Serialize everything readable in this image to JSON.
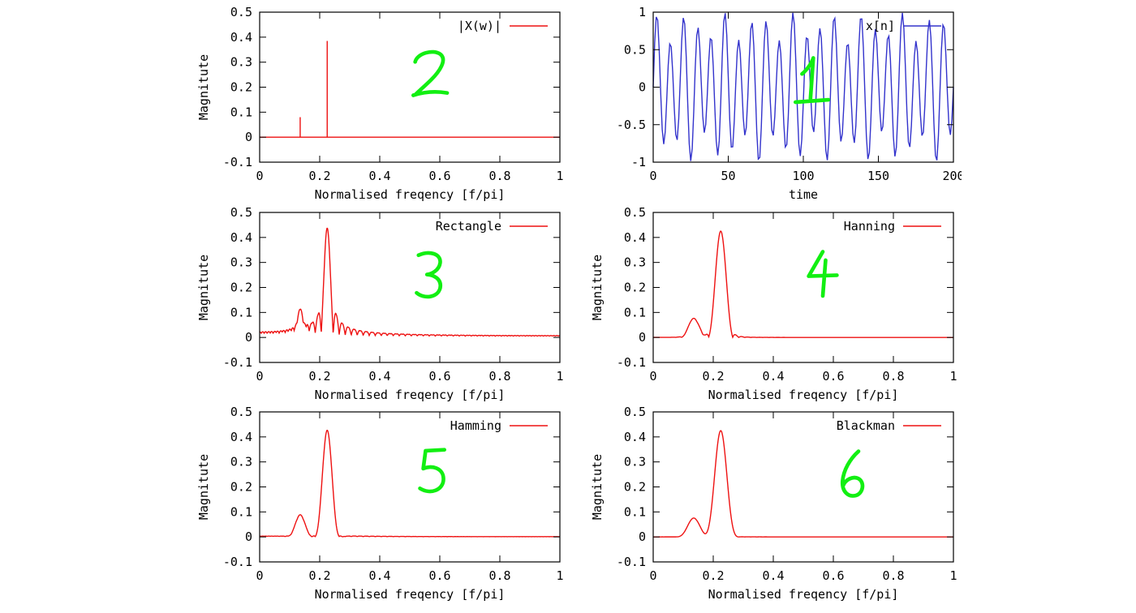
{
  "figure": {
    "background": "#ffffff",
    "text_color": "#000000",
    "axis_color": "#000000",
    "annotation_color": "#12ef12"
  },
  "chart_data": [
    {
      "id": "dft-spectrum",
      "type": "line",
      "legend": "|X(w)|",
      "line_color": "#ee1111",
      "xlabel": "Normalised freqency [f/pi]",
      "ylabel": "Magnitute",
      "xlim": [
        0,
        1
      ],
      "ylim": [
        -0.1,
        0.5
      ],
      "xtick_values": [
        0,
        0.2,
        0.4,
        0.6,
        0.8,
        1
      ],
      "xtick_labels": [
        "0",
        "0.2",
        "0.4",
        "0.6",
        "0.8",
        "1"
      ],
      "ytick_values": [
        -0.1,
        0,
        0.1,
        0.2,
        0.3,
        0.4,
        0.5
      ],
      "ytick_labels": [
        "-0.1",
        "0",
        "0.1",
        "0.2",
        "0.3",
        "0.4",
        "0.5"
      ],
      "series": {
        "kind": "impulses",
        "baseline": 0,
        "impulses": [
          {
            "x": 0.135,
            "h": 0.08
          },
          {
            "x": 0.225,
            "h": 0.385
          }
        ]
      },
      "annotation": {
        "text": "2",
        "fx": 0.568,
        "fy": 0.416
      }
    },
    {
      "id": "time-signal",
      "type": "line",
      "legend": "x[n]",
      "line_color": "#3333cc",
      "xlabel": "time",
      "ylabel": "",
      "xlim": [
        0,
        200
      ],
      "ylim": [
        -1,
        1
      ],
      "xtick_values": [
        0,
        50,
        100,
        150,
        200
      ],
      "xtick_labels": [
        "0",
        "50",
        "100",
        "150",
        "200"
      ],
      "ytick_values": [
        -1,
        -0.5,
        0,
        0.5,
        1
      ],
      "ytick_labels": [
        "-1",
        "-0.5",
        "0",
        "0.5",
        "1"
      ],
      "series": {
        "kind": "two_tone",
        "amplitudes": [
          0.2,
          0.8
        ],
        "frequencies_cyc_per_sample": [
          0.0675,
          0.11
        ],
        "n_range": [
          0,
          200
        ],
        "n_step": 1
      },
      "annotation": {
        "text": "1",
        "fx": 0.527,
        "fy": 0.459
      }
    },
    {
      "id": "rectangle-window-spectrum",
      "type": "line",
      "legend": "Rectangle",
      "line_color": "#ee1111",
      "xlabel": "Normalised freqency [f/pi]",
      "ylabel": "Magnitute",
      "xlim": [
        0,
        1
      ],
      "ylim": [
        -0.1,
        0.5
      ],
      "xtick_values": [
        0,
        0.2,
        0.4,
        0.6,
        0.8,
        1
      ],
      "xtick_labels": [
        "0",
        "0.2",
        "0.4",
        "0.6",
        "0.8",
        "1"
      ],
      "ytick_values": [
        -0.1,
        0,
        0.1,
        0.2,
        0.3,
        0.4,
        0.5
      ],
      "ytick_labels": [
        "-0.1",
        "0",
        "0.1",
        "0.2",
        "0.3",
        "0.4",
        "0.5"
      ],
      "series": {
        "kind": "window_spectrum",
        "window": "Rectangle",
        "cosine_coeffs": [
          1
        ],
        "window_length": 100,
        "components": [
          {
            "x": 0.135,
            "h": 0.08
          },
          {
            "x": 0.225,
            "h": 0.425
          }
        ]
      },
      "annotation": {
        "text": "3",
        "fx": 0.573,
        "fy": 0.42
      }
    },
    {
      "id": "hanning-window-spectrum",
      "type": "line",
      "legend": "Hanning",
      "line_color": "#ee1111",
      "xlabel": "Normalised freqency [f/pi]",
      "ylabel": "Magnitute",
      "xlim": [
        0,
        1
      ],
      "ylim": [
        -0.1,
        0.5
      ],
      "xtick_values": [
        0,
        0.2,
        0.4,
        0.6,
        0.8,
        1
      ],
      "xtick_labels": [
        "0",
        "0.2",
        "0.4",
        "0.6",
        "0.8",
        "1"
      ],
      "ytick_values": [
        -0.1,
        0,
        0.1,
        0.2,
        0.3,
        0.4,
        0.5
      ],
      "ytick_labels": [
        "-0.1",
        "0",
        "0.1",
        "0.2",
        "0.3",
        "0.4",
        "0.5"
      ],
      "series": {
        "kind": "window_spectrum",
        "window": "Hanning",
        "cosine_coeffs": [
          0.5,
          0.5
        ],
        "window_length": 100,
        "components": [
          {
            "x": 0.135,
            "h": 0.075
          },
          {
            "x": 0.225,
            "h": 0.425
          }
        ]
      },
      "annotation": {
        "text": "4",
        "fx": 0.565,
        "fy": 0.409
      }
    },
    {
      "id": "hamming-window-spectrum",
      "type": "line",
      "legend": "Hamming",
      "line_color": "#ee1111",
      "xlabel": "Normalised freqency [f/pi]",
      "ylabel": "Magnitute",
      "xlim": [
        0,
        1
      ],
      "ylim": [
        -0.1,
        0.5
      ],
      "xtick_values": [
        0,
        0.2,
        0.4,
        0.6,
        0.8,
        1
      ],
      "xtick_labels": [
        "0",
        "0.2",
        "0.4",
        "0.6",
        "0.8",
        "1"
      ],
      "ytick_values": [
        -0.1,
        0,
        0.1,
        0.2,
        0.3,
        0.4,
        0.5
      ],
      "ytick_labels": [
        "-0.1",
        "0",
        "0.1",
        "0.2",
        "0.3",
        "0.4",
        "0.5"
      ],
      "series": {
        "kind": "window_spectrum",
        "window": "Hamming",
        "cosine_coeffs": [
          0.54,
          0.46
        ],
        "window_length": 100,
        "components": [
          {
            "x": 0.135,
            "h": 0.085
          },
          {
            "x": 0.225,
            "h": 0.425
          }
        ]
      },
      "annotation": {
        "text": "5",
        "fx": 0.584,
        "fy": 0.4
      }
    },
    {
      "id": "blackman-window-spectrum",
      "type": "line",
      "legend": "Blackman",
      "line_color": "#ee1111",
      "xlabel": "Normalised freqency [f/pi]",
      "ylabel": "Magnitute",
      "xlim": [
        0,
        1
      ],
      "ylim": [
        -0.1,
        0.5
      ],
      "xtick_values": [
        0,
        0.2,
        0.4,
        0.6,
        0.8,
        1
      ],
      "xtick_labels": [
        "0",
        "0.2",
        "0.4",
        "0.6",
        "0.8",
        "1"
      ],
      "ytick_values": [
        -0.1,
        0,
        0.1,
        0.2,
        0.3,
        0.4,
        0.5
      ],
      "ytick_labels": [
        "-0.1",
        "0",
        "0.1",
        "0.2",
        "0.3",
        "0.4",
        "0.5"
      ],
      "series": {
        "kind": "window_spectrum",
        "window": "Blackman",
        "cosine_coeffs": [
          0.42,
          0.5,
          0.08
        ],
        "window_length": 100,
        "components": [
          {
            "x": 0.135,
            "h": 0.075
          },
          {
            "x": 0.225,
            "h": 0.425
          }
        ]
      },
      "annotation": {
        "text": "6",
        "fx": 0.668,
        "fy": 0.416
      }
    }
  ]
}
